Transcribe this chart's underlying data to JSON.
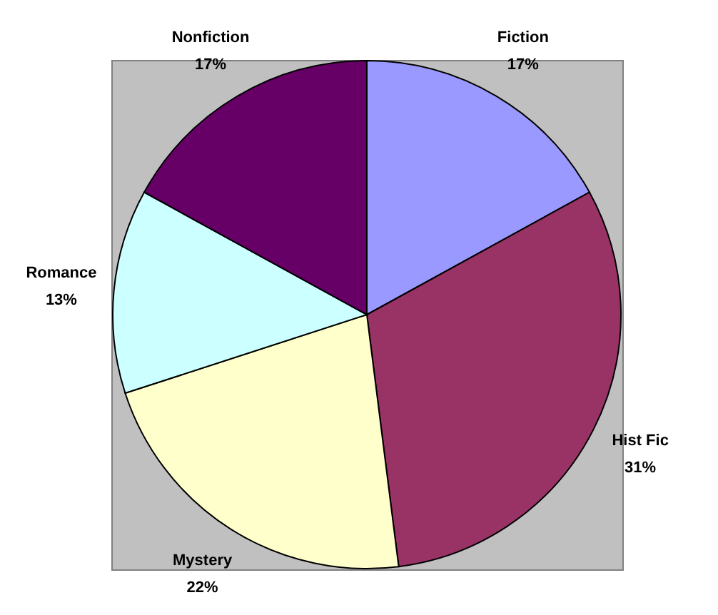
{
  "chart_data": {
    "type": "pie",
    "categories": [
      "Fiction",
      "Hist Fic",
      "Mystery",
      "Romance",
      "Nonfiction"
    ],
    "values": [
      17,
      31,
      22,
      13,
      17
    ],
    "value_labels": [
      "17%",
      "31%",
      "22%",
      "13%",
      "17%"
    ],
    "colors": [
      "#9999ff",
      "#993366",
      "#ffffcc",
      "#ccffff",
      "#660066"
    ],
    "legend": false
  }
}
